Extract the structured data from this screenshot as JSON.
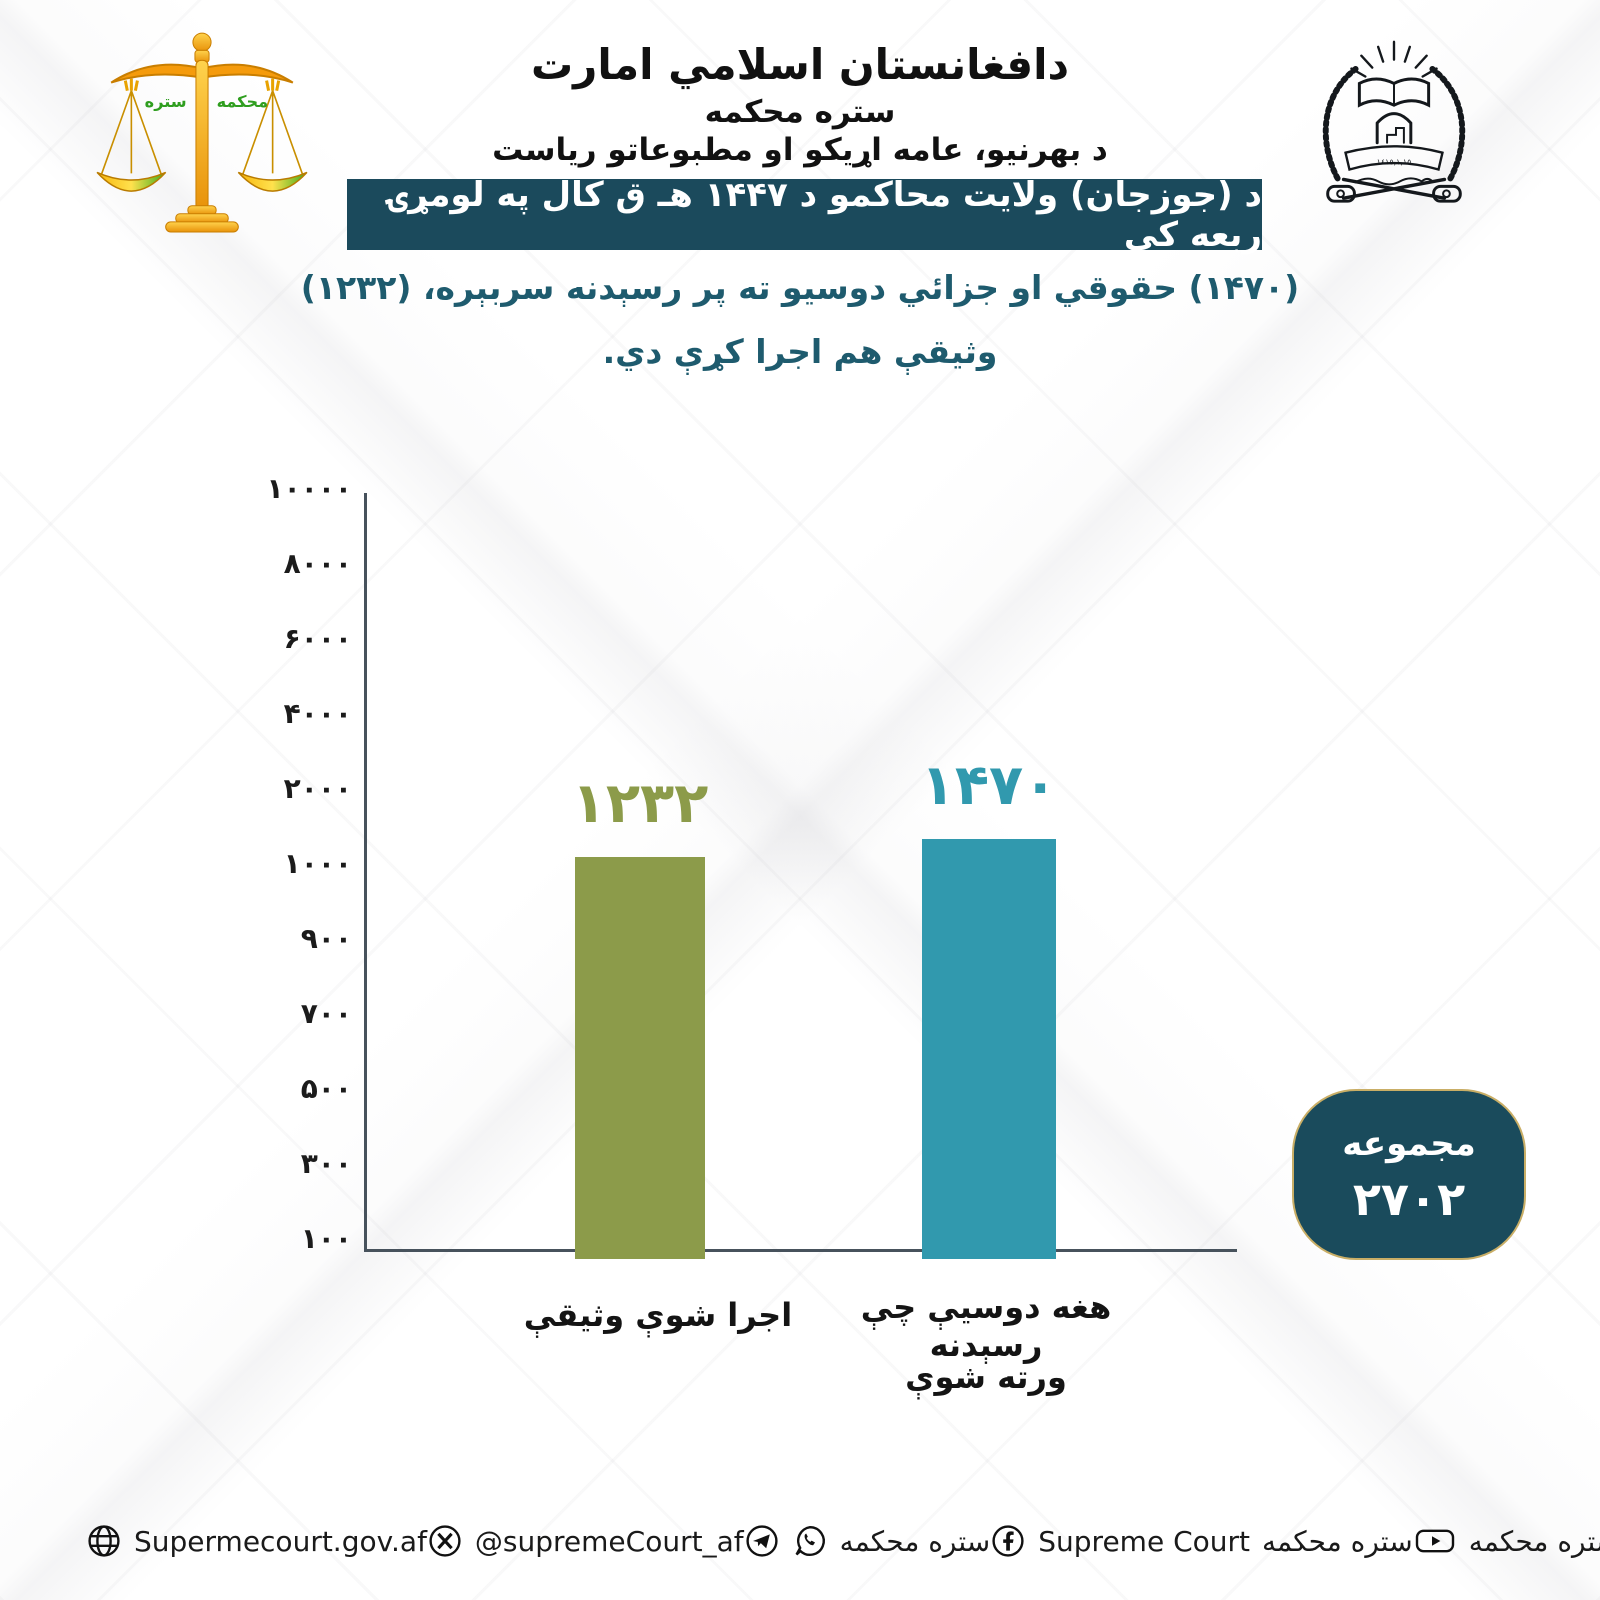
{
  "colors": {
    "band-bg": "#1B4A5C",
    "subtitle-text": "#1E5B6E",
    "bar-left": "#8C9B4A",
    "bar-right": "#3199AE",
    "badge-bg": "#1A4B5C",
    "badge-border": "#C9AE66",
    "axis": "#47525C",
    "footer-text": "#1A1A1A"
  },
  "header": {
    "calligraphy": "دافغانستان اسلامي امارت",
    "court_name": "ستره محکمه",
    "directorate": "د بهرنیو، عامه اړیکو او مطبوعاتو ریاست"
  },
  "scales_logo": {
    "left_word": "ستره",
    "right_word": "محکمه"
  },
  "emblem": {
    "banner_text": "١٤١٥,١,١٥"
  },
  "title_band": {
    "text": "د (جوزجان) ولایت محاکمو د ۱۴۴۷ هـ ق کال په لومړۍ ربعه کې"
  },
  "subtitle": {
    "line1": "(۱۴۷۰) حقوقي او جزائي دوسیو ته پر رسېدنه سربېره، (۱۲۳۲)",
    "line2": "وثیقې هم اجرا کړې دي."
  },
  "chart_data": {
    "type": "bar",
    "categories": [
      "اجرا شوې وثیقې",
      "هغه دوسیې چې رسېدنه ورته شوې"
    ],
    "values": [
      1232,
      1470
    ],
    "value_labels": [
      "۱۲۳۲",
      "۱۴۷۰"
    ],
    "bar_colors": [
      "#8C9B4A",
      "#3199AE"
    ],
    "y_tick_labels": [
      "۱۰۰۰۰",
      "۸۰۰۰",
      "۶۰۰۰",
      "۴۰۰۰",
      "۲۰۰۰",
      "۱۰۰۰",
      "۹۰۰",
      "۷۰۰",
      "۵۰۰",
      "۳۰۰",
      "۱۰۰"
    ],
    "y_tick_values": [
      10000,
      8000,
      6000,
      4000,
      2000,
      1000,
      900,
      700,
      500,
      300,
      100
    ],
    "title": "",
    "xlabel": "",
    "ylabel": "",
    "grid": false,
    "legend": false,
    "total": 2702
  },
  "x_axis": {
    "left_label": "اجرا شوې وثیقې",
    "right_label_line1": "هغه دوسیې چې رسېدنه",
    "right_label_line2": "ورته شوې"
  },
  "total_badge": {
    "label": "مجموعه",
    "value": "۲۷۰۲"
  },
  "footer": {
    "website": {
      "icon": "globe-icon",
      "label": "Supermecourt.gov.af"
    },
    "x_account": {
      "icon": "x-twitter-icon",
      "label": "@supremeCourt_af"
    },
    "messaging": {
      "icons": [
        "telegram-icon",
        "whatsapp-icon"
      ],
      "label": "ستره محکمه"
    },
    "facebook": {
      "icon": "facebook-icon",
      "label_en": "Supreme Court",
      "label_ps": "ستره محکمه"
    },
    "youtube": {
      "icon": "youtube-icon",
      "label": "د افغانستان اسلامي امارت ستره محکمه"
    }
  }
}
